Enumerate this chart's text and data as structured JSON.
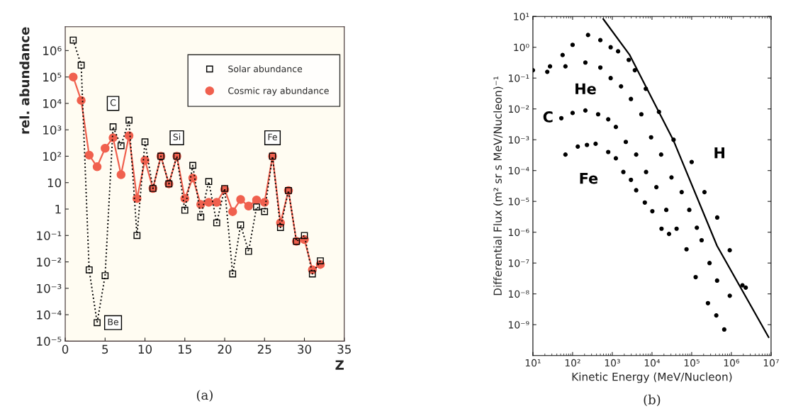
{
  "chart_data": [
    {
      "type": "line",
      "xlabel": "Z",
      "ylabel": "rel. abundance",
      "log": "y",
      "x": [
        1,
        2,
        3,
        4,
        5,
        6,
        7,
        8,
        9,
        10,
        11,
        12,
        13,
        14,
        15,
        16,
        17,
        18,
        19,
        20,
        21,
        22,
        23,
        24,
        25,
        26,
        27,
        28,
        29,
        30,
        31,
        32
      ],
      "xlim": [
        0,
        35
      ],
      "xticks": [
        0,
        5,
        10,
        15,
        20,
        25,
        30,
        35
      ],
      "ylim": [
        1e-05,
        8000000.0
      ],
      "yticks": [
        {
          "value": 1e-05,
          "label": "10⁻⁵"
        },
        {
          "value": 0.0001,
          "label": "10⁻⁴"
        },
        {
          "value": 0.001,
          "label": "10⁻³"
        },
        {
          "value": 0.01,
          "label": "10⁻²"
        },
        {
          "value": 0.1,
          "label": "10⁻¹"
        },
        1,
        10,
        {
          "value": 100,
          "label": "10²"
        },
        {
          "value": 1000,
          "label": "10³"
        },
        {
          "value": 10000,
          "label": "10⁴"
        },
        {
          "value": 100000,
          "label": "10⁵"
        },
        {
          "value": 1000000,
          "label": "10⁶"
        }
      ],
      "grid": false,
      "legend": "top right",
      "series": [
        {
          "name": "Solar abundance",
          "color": "#000000",
          "marker": "square",
          "line_style": "dotted",
          "values": [
            2500000.0,
            280000.0,
            0.005,
            5e-05,
            0.003,
            1300,
            250,
            2300,
            0.1,
            350,
            6,
            100,
            9,
            100,
            0.9,
            45,
            0.5,
            11,
            0.3,
            6,
            0.0035,
            0.25,
            0.025,
            1.2,
            0.8,
            100,
            0.2,
            5,
            0.06,
            0.1,
            0.0035,
            0.011
          ]
        },
        {
          "name": "Cosmic ray abundance",
          "color": "#f0604e",
          "marker": "circle",
          "line_style": "solid",
          "values": [
            100000.0,
            13000.0,
            110,
            40,
            200,
            500,
            20,
            600,
            2.5,
            70,
            6,
            100,
            9,
            100,
            2.5,
            15,
            1.5,
            1.8,
            1.8,
            5.5,
            0.8,
            2.3,
            1.3,
            2.2,
            1.8,
            100,
            0.3,
            5,
            0.06,
            0.07,
            0.005,
            0.008
          ]
        }
      ],
      "annotations": [
        {
          "text": "C",
          "x": 6,
          "y": 10000
        },
        {
          "text": "Be",
          "x": 6,
          "y": 5e-05
        },
        {
          "text": "Si",
          "x": 14,
          "y": 500
        },
        {
          "text": "Fe",
          "x": 26,
          "y": 500
        },
        "(a)"
      ]
    },
    {
      "type": "scatter",
      "xlabel": "Kinetic Energy (MeV/Nucleon)",
      "ylabel": "Differential Flux (m² sr s MeV/Nucleon)⁻¹",
      "log": "xy",
      "xlim": [
        10,
        10000000.0
      ],
      "ylim": [
        1e-10,
        10
      ],
      "xticks": [
        {
          "value": 10,
          "label": "10¹"
        },
        {
          "value": 100,
          "label": "10²"
        },
        {
          "value": 1000,
          "label": "10³"
        },
        {
          "value": 10000,
          "label": "10⁴"
        },
        {
          "value": 100000,
          "label": "10⁵"
        },
        {
          "value": 1000000,
          "label": "10⁶"
        },
        {
          "value": 10000000,
          "label": "10⁷"
        }
      ],
      "yticks": [
        {
          "value": 1e-09,
          "label": "10⁻⁹"
        },
        {
          "value": 1e-08,
          "label": "10⁻⁸"
        },
        {
          "value": 1e-07,
          "label": "10⁻⁷"
        },
        {
          "value": 1e-06,
          "label": "10⁻⁶"
        },
        {
          "value": 1e-05,
          "label": "10⁻⁵"
        },
        {
          "value": 0.0001,
          "label": "10⁻⁴"
        },
        {
          "value": 0.001,
          "label": "10⁻³"
        },
        {
          "value": 0.01,
          "label": "10⁻²"
        },
        {
          "value": 0.1,
          "label": "10⁻¹"
        },
        {
          "value": 1,
          "label": "10⁰"
        },
        {
          "value": 10,
          "label": "10¹"
        }
      ],
      "grid": false,
      "series": [
        {
          "name": "H",
          "color": "#000000",
          "marker": "circle",
          "x": [
            27,
            56,
            100,
            245,
            500,
            910,
            1400,
            2600,
            3700,
            7000,
            15000,
            35000,
            100000,
            210000,
            440000,
            910000,
            1900000,
            2300000
          ],
          "values": [
            0.24,
            0.56,
            1.2,
            2.5,
            1.7,
            1.0,
            0.74,
            0.39,
            0.18,
            0.045,
            0.008,
            0.001,
            0.00019,
            2e-05,
            3e-06,
            2.6e-07,
            1.9e-08,
            1.6e-08
          ]
        },
        {
          "name": "He",
          "color": "#000000",
          "marker": "circle",
          "x": [
            10,
            23,
            66,
            210,
            500,
            910,
            1660,
            2950,
            5400,
            9500,
            17000,
            31000,
            56000,
            87000,
            135000,
            178000,
            282000,
            437000
          ],
          "values": [
            0.18,
            0.16,
            0.24,
            0.32,
            0.22,
            0.1,
            0.054,
            0.021,
            0.0067,
            0.0012,
            0.00033,
            6e-05,
            2e-05,
            5.3e-06,
            1.4e-06,
            5.5e-07,
            1e-07,
            2.7e-08
          ]
        },
        {
          "name": "C",
          "color": "#000000",
          "marker": "circle",
          "x": [
            52,
            100,
            210,
            440,
            790,
            1230,
            2190,
            4000,
            7100,
            12900,
            22900,
            41700,
            74100,
            126000
          ],
          "values": [
            0.005,
            0.0074,
            0.0089,
            0.0067,
            0.0046,
            0.0026,
            0.00085,
            0.00033,
            9e-05,
            2.9e-05,
            5.3e-06,
            1.3e-06,
            2.8e-07,
            3.5e-08
          ]
        },
        {
          "name": "Fe",
          "color": "#000000",
          "marker": "circle",
          "x": [
            66,
            135,
            230,
            380,
            790,
            1230,
            1900,
            2950,
            4000,
            6600,
            10200,
            17400,
            26900,
            257000,
            417000,
            661000,
            912000
          ],
          "values": [
            0.00033,
            0.0006,
            0.00068,
            0.00074,
            0.0004,
            0.00025,
            9e-05,
            5e-05,
            2.3e-05,
            9.2e-06,
            4.8e-06,
            1.3e-06,
            8.8e-07,
            5e-09,
            2e-09,
            7e-10,
            8.7e-09
          ]
        },
        {
          "type": "line",
          "color": "#000000",
          "marker": "none",
          "x": [
            590,
            2750,
            35000,
            436000,
            8700000
          ],
          "values": [
            8.3,
            0.56,
            0.00093,
            3.6e-07,
            3.9e-10
          ]
        }
      ],
      "annotations": [
        "(b)"
      ]
    }
  ]
}
